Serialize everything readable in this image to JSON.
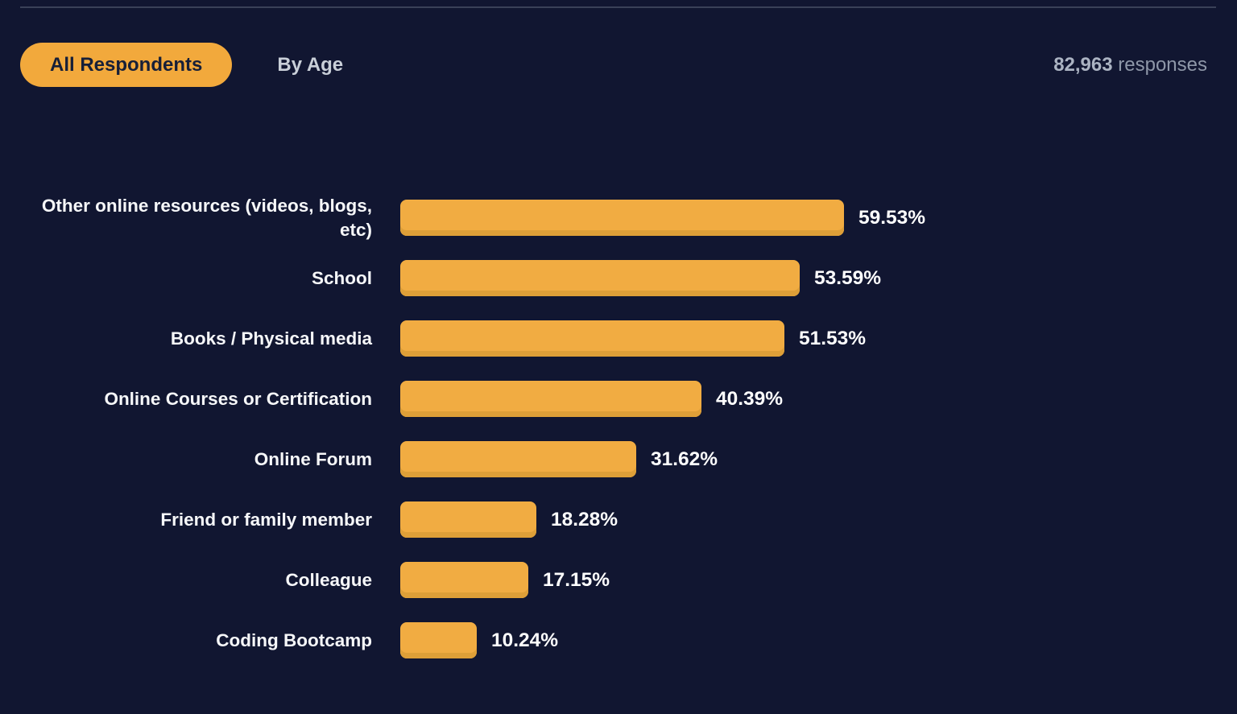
{
  "colors": {
    "bg": "#111631",
    "divider": "#3A4158",
    "accent": "#F2A93C",
    "pill_text": "#161F38",
    "tab_inactive_text": "#C9CFD8",
    "responses_count_color": "#ABB3C2",
    "responses_label_color": "#8E97A8",
    "bar_fill": "#F1AC42",
    "bar_shade": "#DE9F38",
    "category_text": "#F6F7F9",
    "value_text": "#FFFFFF"
  },
  "header": {
    "tabs": [
      {
        "label": "All Respondents",
        "active": true
      },
      {
        "label": "By Age",
        "active": false
      }
    ],
    "responses_count": "82,963",
    "responses_label": " responses"
  },
  "chart_data": {
    "type": "bar",
    "orientation": "horizontal",
    "title": "",
    "xlabel": "",
    "ylabel": "",
    "xlim": [
      0,
      100
    ],
    "grid": false,
    "legend": false,
    "value_suffix": "%",
    "categories": [
      "Other online resources (videos, blogs, etc)",
      "School",
      "Books / Physical media",
      "Online Courses or Certification",
      "Online Forum",
      "Friend or family member",
      "Colleague",
      "Coding Bootcamp"
    ],
    "values": [
      59.53,
      53.59,
      51.53,
      40.39,
      31.62,
      18.28,
      17.15,
      10.24
    ]
  }
}
